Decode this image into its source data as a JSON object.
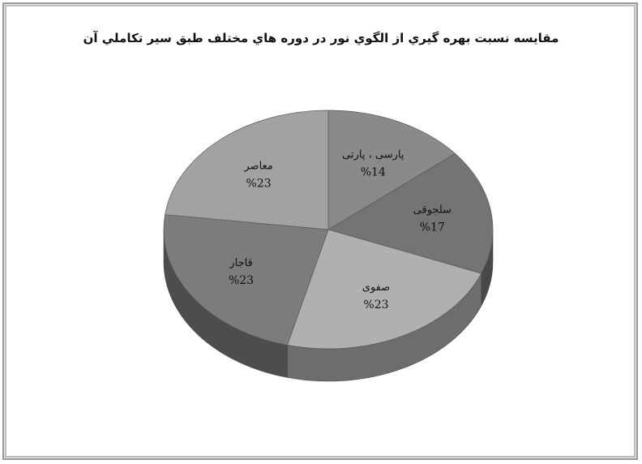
{
  "chart_data": {
    "type": "pie",
    "title": "مقايسه نسبت بهره گيري از الگوي نور در دوره هاي مختلف طبق سير تکاملي آن",
    "slices": [
      {
        "label": "پارسی ، پارتی",
        "value": 14,
        "value_label": "%14",
        "color": "#8a8a8a"
      },
      {
        "label": "سلجوقی",
        "value": 17,
        "value_label": "%17",
        "color": "#747474"
      },
      {
        "label": "صفوی",
        "value": 23,
        "value_label": "%23",
        "color": "#b0b0b0"
      },
      {
        "label": "قاجار",
        "value": 23,
        "value_label": "%23",
        "color": "#7c7c7c"
      },
      {
        "label": "معاصر",
        "value": 23,
        "value_label": "%23",
        "color": "#a2a2a2"
      }
    ],
    "start_angle_deg": 0,
    "direction": "clockwise",
    "style": "3d"
  }
}
